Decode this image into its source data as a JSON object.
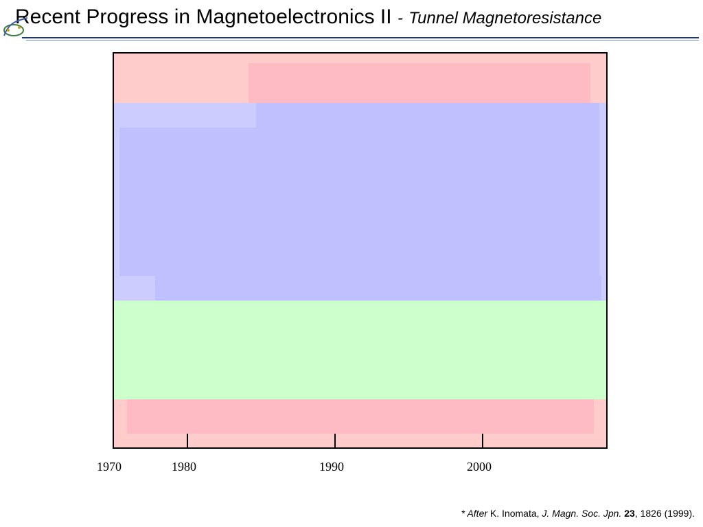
{
  "title": {
    "main": "Recent Progress in Magnetoelectronics II",
    "separator": "-",
    "subtitle": "Tunnel Magnetoresistance"
  },
  "axis": {
    "years": [
      "1970",
      "1980",
      "1990",
      "2000"
    ]
  },
  "citation": {
    "after": "* After",
    "author": "K. Inomata,",
    "journal": "J. Magn. Soc. Jpn.",
    "volume": "23",
    "rest": ", 1826 (1999)."
  },
  "colors": {
    "pink_light": "#ffcccc",
    "pink": "#ffbbc4",
    "blue_light": "#ccccff",
    "blue": "#c0bfff",
    "green": "#ccffcc",
    "rule": "#1f3a6b"
  }
}
